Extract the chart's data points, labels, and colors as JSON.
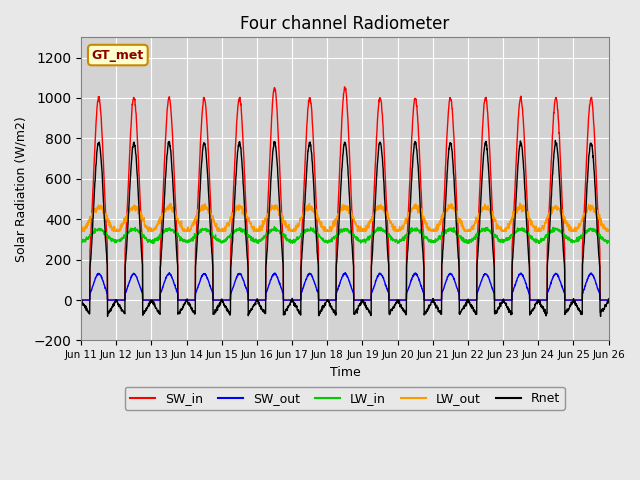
{
  "title": "Four channel Radiometer",
  "xlabel": "Time",
  "ylabel": "Solar Radiation (W/m2)",
  "ylim": [
    -200,
    1300
  ],
  "yticks": [
    -200,
    0,
    200,
    400,
    600,
    800,
    1000,
    1200
  ],
  "n_days": 15,
  "colors": {
    "SW_in": "#ff0000",
    "SW_out": "#0000ff",
    "LW_in": "#00cc00",
    "LW_out": "#ff9900",
    "Rnet": "#000000"
  },
  "legend_label": "GT_met",
  "x_tick_labels": [
    "Jun 11",
    "Jun 12",
    "Jun 13",
    "Jun 14",
    "Jun 15",
    "Jun 16",
    "Jun 17",
    "Jun 18",
    "Jun 19",
    "Jun 20",
    "Jun 21",
    "Jun 22",
    "Jun 23",
    "Jun 24",
    "Jun 25",
    "Jun 26"
  ],
  "SW_in_peak": 1000,
  "SW_out_peak": 130,
  "LW_in_base": 320,
  "LW_in_amplitude": 30,
  "LW_out_base": 400,
  "LW_out_amplitude": 60,
  "Rnet_peak": 780,
  "Rnet_neg": -100
}
